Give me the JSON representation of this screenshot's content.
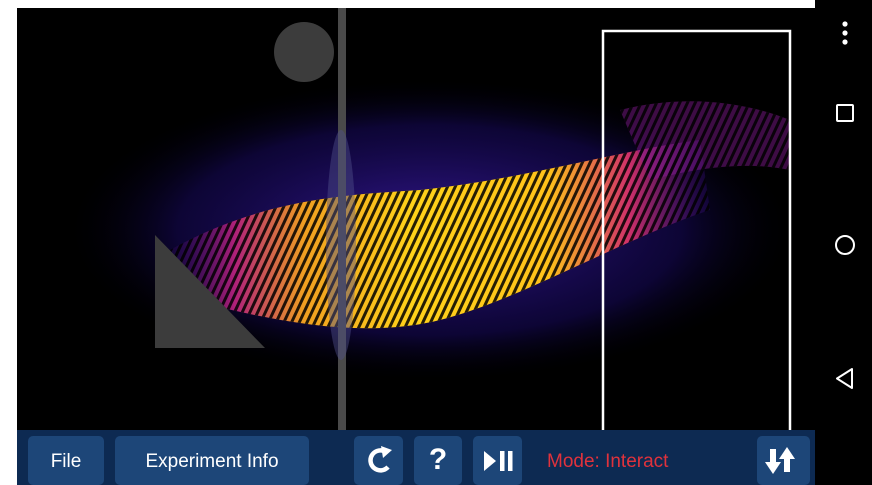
{
  "toolbar": {
    "file_button": "File",
    "experiment_info_button": "Experiment Info",
    "help_button": "?",
    "mode_status": "Mode: Interact"
  }
}
